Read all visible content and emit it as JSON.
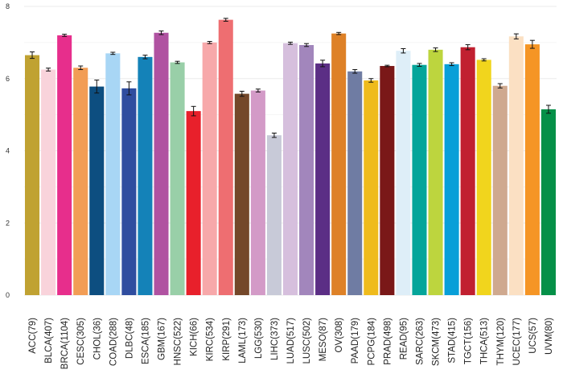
{
  "chart_data": {
    "type": "bar",
    "title": "",
    "xlabel": "",
    "ylabel": "",
    "ylim": [
      0,
      8
    ],
    "yticks": [
      0,
      2,
      4,
      6,
      8
    ],
    "grid": true,
    "legend": "none",
    "categories": [
      "ACC(79)",
      "BLCA(407)",
      "BRCA(1104)",
      "CESC(305)",
      "CHOL(36)",
      "COAD(288)",
      "DLBC(48)",
      "ESCA(185)",
      "GBM(167)",
      "HNSC(522)",
      "KICH(66)",
      "KIRC(534)",
      "KIRP(291)",
      "LAML(173)",
      "LGG(530)",
      "LIHC(373)",
      "LUAD(517)",
      "LUSC(502)",
      "MESO(87)",
      "OV(308)",
      "PAAD(179)",
      "PCPG(184)",
      "PRAD(498)",
      "READ(95)",
      "SARC(263)",
      "SKCM(473)",
      "STAD(415)",
      "TGCT(156)",
      "THCA(513)",
      "THYM(120)",
      "UCEC(177)",
      "UCS(57)",
      "UVM(80)"
    ],
    "values": [
      6.65,
      6.25,
      7.2,
      6.3,
      5.78,
      6.7,
      5.73,
      6.6,
      7.27,
      6.45,
      5.1,
      7.0,
      7.63,
      5.58,
      5.67,
      4.43,
      6.98,
      6.93,
      6.42,
      7.25,
      6.2,
      5.95,
      6.35,
      6.77,
      6.38,
      6.8,
      6.4,
      6.87,
      6.52,
      5.8,
      7.17,
      6.95,
      5.15
    ],
    "errors": [
      0.09,
      0.04,
      0.03,
      0.05,
      0.18,
      0.03,
      0.18,
      0.05,
      0.05,
      0.03,
      0.13,
      0.03,
      0.04,
      0.07,
      0.04,
      0.06,
      0.03,
      0.04,
      0.09,
      0.03,
      0.05,
      0.05,
      0.02,
      0.06,
      0.04,
      0.05,
      0.04,
      0.07,
      0.03,
      0.06,
      0.07,
      0.11,
      0.11
    ],
    "colors": [
      "#C0A232",
      "#F9D3DB",
      "#E72E8C",
      "#F29D55",
      "#0D4E80",
      "#A8D6F5",
      "#2F4D9F",
      "#1482B8",
      "#B052A1",
      "#99CFA8",
      "#E8202B",
      "#F7A8AA",
      "#EE6E71",
      "#74482A",
      "#D39AC7",
      "#C8CAD8",
      "#D6BFDD",
      "#A286BC",
      "#5B2E85",
      "#DE8127",
      "#6F7CA3",
      "#EFBB1C",
      "#7A1818",
      "#DEEEF8",
      "#05A59A",
      "#BDD53E",
      "#089FD8",
      "#C12030",
      "#F1D51D",
      "#CFA98F",
      "#FBE0C3",
      "#F59525",
      "#059048"
    ]
  }
}
